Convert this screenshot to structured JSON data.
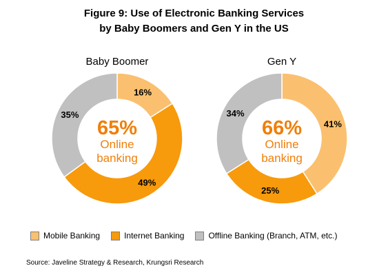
{
  "title_line1": "Figure 9: Use of Electronic Banking Services",
  "title_line2": "by Baby Boomers and Gen Y in the US",
  "colors": {
    "mobile": "#FAC06F",
    "internet": "#F79A0C",
    "offline": "#C0C0C0",
    "center_text": "#F07F09"
  },
  "chart_data": [
    {
      "type": "pie",
      "title": "Baby Boomer",
      "center_value": "65%",
      "center_label_line1": "Online",
      "center_label_line2": "banking",
      "slices": [
        {
          "name": "Mobile Banking",
          "value": 16,
          "label": "16%"
        },
        {
          "name": "Internet Banking",
          "value": 49,
          "label": "49%"
        },
        {
          "name": "Offline Banking (Branch, ATM, etc.)",
          "value": 35,
          "label": "35%"
        }
      ]
    },
    {
      "type": "pie",
      "title": "Gen Y",
      "center_value": "66%",
      "center_label_line1": "Online",
      "center_label_line2": "banking",
      "slices": [
        {
          "name": "Mobile Banking",
          "value": 41,
          "label": "41%"
        },
        {
          "name": "Internet Banking",
          "value": 25,
          "label": "25%"
        },
        {
          "name": "Offline Banking (Branch, ATM, etc.)",
          "value": 34,
          "label": "34%"
        }
      ]
    }
  ],
  "legend": [
    {
      "label": "Mobile Banking",
      "color": "#FAC06F"
    },
    {
      "label": "Internet Banking",
      "color": "#F79A0C"
    },
    {
      "label": "Offline Banking (Branch, ATM, etc.)",
      "color": "#C0C0C0"
    }
  ],
  "source": "Source: Javeline Strategy & Research, Krungsri Research"
}
